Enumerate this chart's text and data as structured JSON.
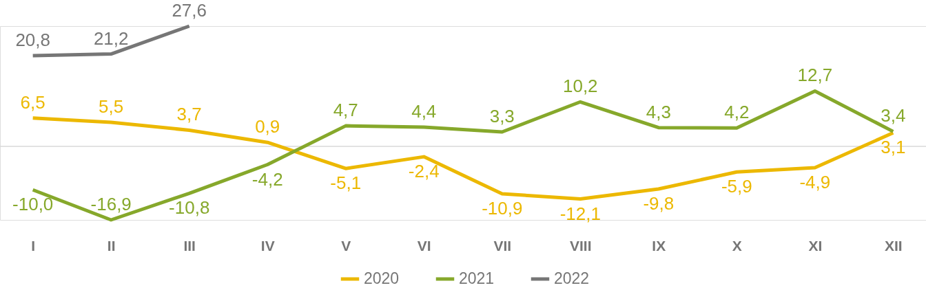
{
  "chart_data": {
    "type": "line",
    "categories": [
      "I",
      "II",
      "III",
      "IV",
      "V",
      "VI",
      "VII",
      "VIII",
      "IX",
      "X",
      "XI",
      "XII"
    ],
    "series": [
      {
        "name": "2020",
        "color": "#ecb800",
        "values": [
          6.5,
          5.5,
          3.7,
          0.9,
          -5.1,
          -2.4,
          -10.9,
          -12.1,
          -9.8,
          -5.9,
          -4.9,
          3.1
        ],
        "value_labels": [
          "6,5",
          "5,5",
          "3,7",
          "0,9",
          "-5,1",
          "-2,4",
          "-10,9",
          "-12,1",
          "-9,8",
          "-5,9",
          "-4,9",
          "3,1"
        ]
      },
      {
        "name": "2021",
        "color": "#86a82b",
        "values": [
          -10.0,
          -16.9,
          -10.8,
          -4.2,
          4.7,
          4.4,
          3.3,
          10.2,
          4.3,
          4.2,
          12.7,
          3.4
        ],
        "value_labels": [
          "-10,0",
          "-16,9",
          "-10,8",
          "-4,2",
          "4,7",
          "4,4",
          "3,3",
          "10,2",
          "4,3",
          "4,2",
          "12,7",
          "3,4"
        ]
      },
      {
        "name": "2022",
        "color": "#767676",
        "values": [
          20.8,
          21.2,
          27.6,
          null,
          null,
          null,
          null,
          null,
          null,
          null,
          null,
          null
        ],
        "value_labels": [
          "20,8",
          "21,2",
          "27,6",
          null,
          null,
          null,
          null,
          null,
          null,
          null,
          null,
          null
        ]
      }
    ],
    "ref_lines": [
      {
        "axis": "y",
        "value": 0,
        "color": "#d9d9d9"
      }
    ],
    "legend": "bottom"
  }
}
